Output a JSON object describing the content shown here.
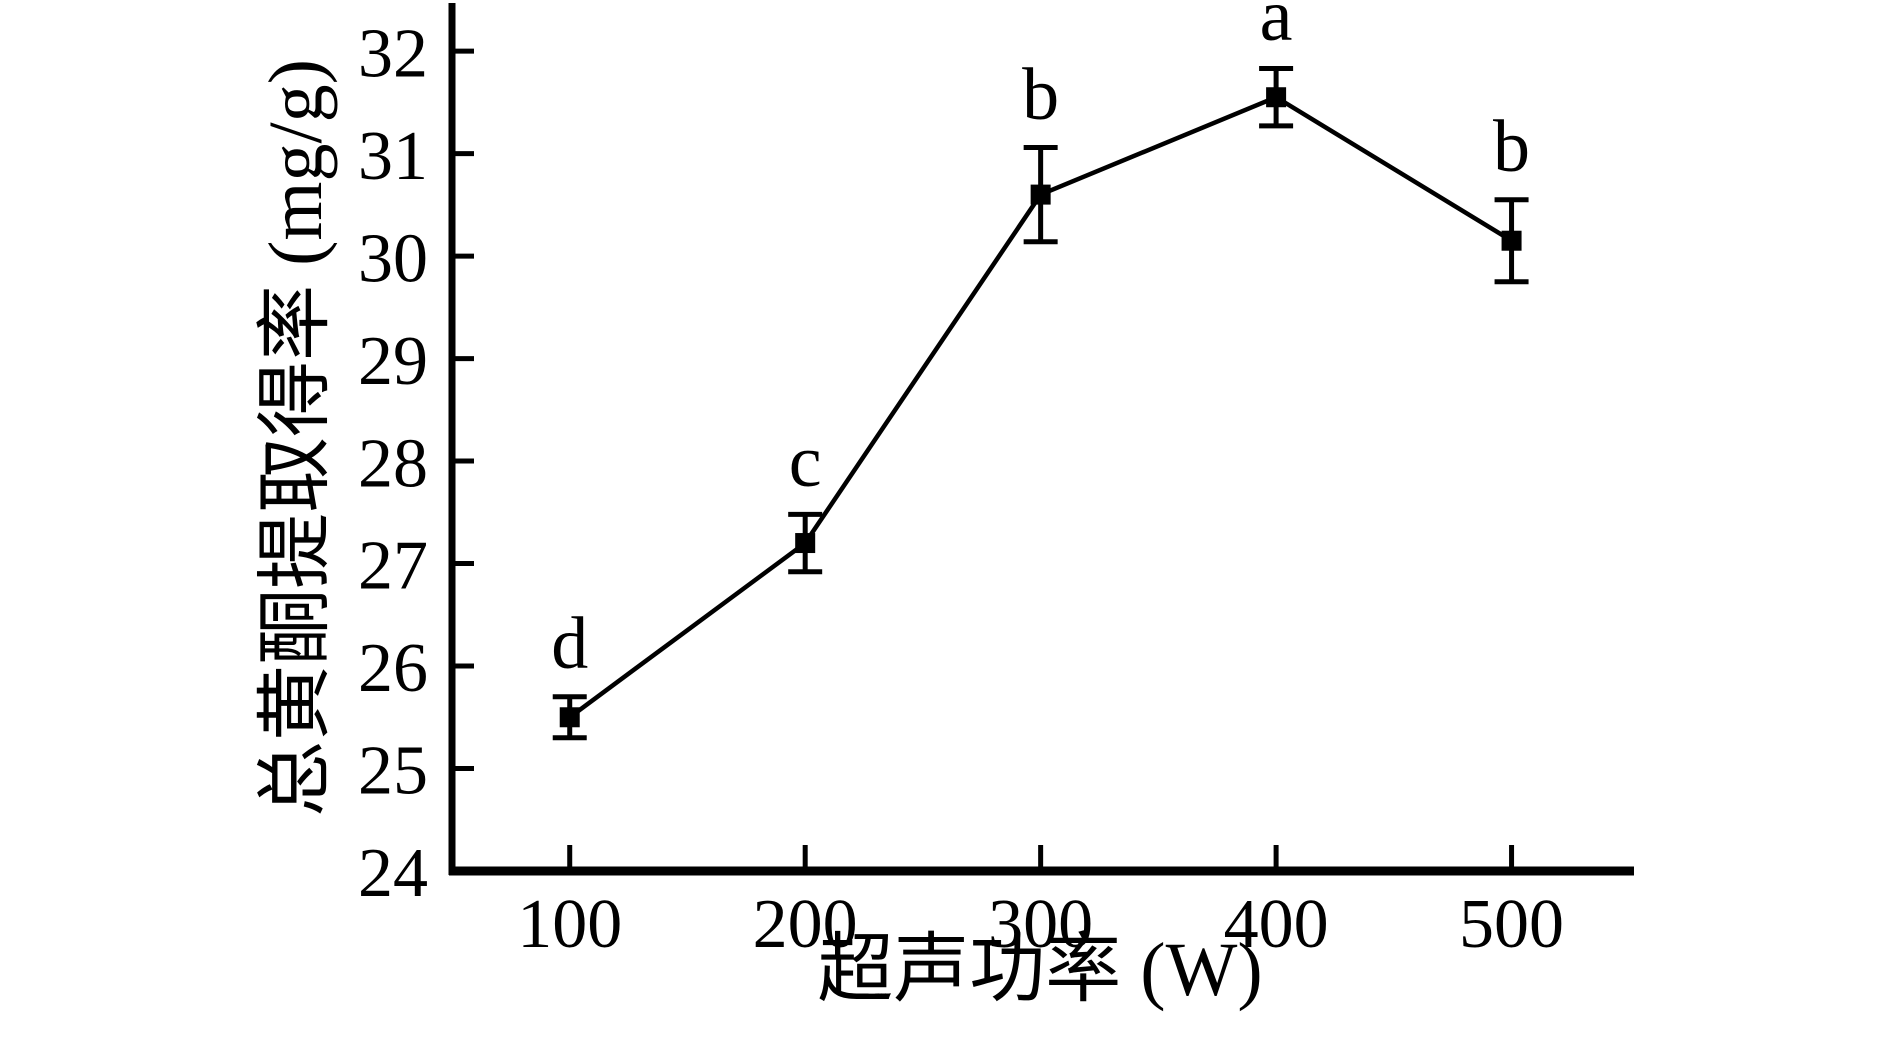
{
  "figure": {
    "background": "#ffffff",
    "ink_color": "#000000"
  },
  "chart_data": {
    "type": "line",
    "title": "",
    "xlabel": "超声功率 (W)",
    "ylabel": "总黄酮提取得率 (mg/g)",
    "series": [
      {
        "name": "总黄酮提取得率",
        "x": [
          100,
          200,
          300,
          400,
          500
        ],
        "y": [
          25.5,
          27.2,
          30.6,
          31.55,
          30.15
        ],
        "yerr": [
          0.2,
          0.28,
          0.46,
          0.28,
          0.4
        ],
        "point_annotations": [
          "d",
          "c",
          "b",
          "a",
          "b"
        ],
        "marker": "filled-square",
        "color": "#000000"
      }
    ],
    "xticks": [
      100,
      200,
      300,
      400,
      500
    ],
    "yticks": [
      24,
      25,
      26,
      27,
      28,
      29,
      30,
      31,
      32
    ],
    "xlim": [
      50,
      552
    ],
    "ylim": [
      24,
      32.45
    ],
    "grid": false,
    "legend_position": "none",
    "error_bars": true,
    "axes_shown": [
      "left",
      "bottom"
    ],
    "tick_direction": "in"
  }
}
